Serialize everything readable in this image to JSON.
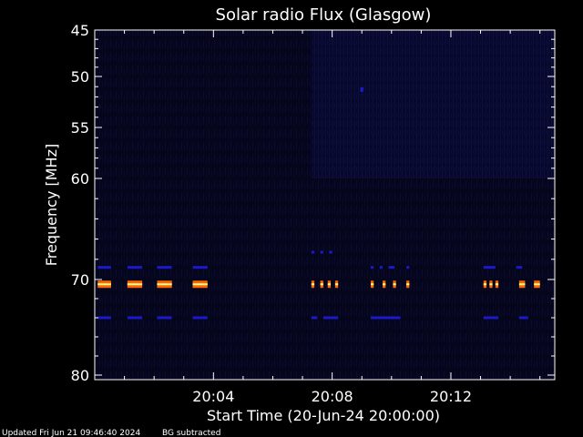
{
  "chart_data": {
    "type": "heatmap",
    "title": "Solar radio Flux (Glasgow)",
    "xlabel": "Start Time (20-Jun-24 20:00:00)",
    "ylabel": "Frequency [MHz]",
    "x_unit": "minutes after 20:00:00",
    "xlim": [
      0,
      15.5
    ],
    "ylim": [
      45,
      80
    ],
    "x_ticks": [
      {
        "value": 4,
        "label": "20:04"
      },
      {
        "value": 8,
        "label": "20:08"
      },
      {
        "value": 12,
        "label": "20:12"
      }
    ],
    "y_ticks": [
      {
        "value": 45,
        "label": "45"
      },
      {
        "value": 50,
        "label": "50"
      },
      {
        "value": 55,
        "label": "55"
      },
      {
        "value": 60,
        "label": "60"
      },
      {
        "value": 70,
        "label": "70"
      },
      {
        "value": 80,
        "label": "80"
      }
    ],
    "colors": {
      "background": "#000000",
      "plot_background": "#04041a",
      "low": "#0a0a2e",
      "medium": "#1a1acc",
      "high": "#ff6600",
      "peak": "#ffff99"
    },
    "features": [
      {
        "desc": "strong emission bursts",
        "freq": 70.5,
        "level": "high",
        "x_segments": [
          [
            0.1,
            0.55
          ],
          [
            1.1,
            1.6
          ],
          [
            2.1,
            2.6
          ],
          [
            3.3,
            3.8
          ],
          [
            7.3,
            7.4
          ],
          [
            7.6,
            7.7
          ],
          [
            7.85,
            7.95
          ],
          [
            8.1,
            8.2
          ],
          [
            9.3,
            9.4
          ],
          [
            9.7,
            9.8
          ],
          [
            10.05,
            10.15
          ],
          [
            10.5,
            10.6
          ],
          [
            13.1,
            13.2
          ],
          [
            13.3,
            13.4
          ],
          [
            13.5,
            13.6
          ],
          [
            14.3,
            14.5
          ],
          [
            14.8,
            15.0
          ]
        ]
      },
      {
        "desc": "moderate emission",
        "freq": 68.8,
        "level": "medium",
        "x_segments": [
          [
            0.1,
            0.55
          ],
          [
            1.1,
            1.6
          ],
          [
            2.1,
            2.6
          ],
          [
            3.3,
            3.8
          ],
          [
            9.3,
            9.4
          ],
          [
            9.6,
            9.7
          ],
          [
            9.9,
            10.1
          ],
          [
            10.5,
            10.6
          ],
          [
            13.1,
            13.5
          ],
          [
            14.2,
            14.4
          ]
        ]
      },
      {
        "desc": "moderate emission",
        "freq": 74.0,
        "level": "medium",
        "x_segments": [
          [
            0.1,
            0.55
          ],
          [
            1.1,
            1.6
          ],
          [
            2.1,
            2.6
          ],
          [
            3.3,
            3.8
          ],
          [
            7.3,
            7.5
          ],
          [
            7.7,
            8.2
          ],
          [
            9.3,
            10.3
          ],
          [
            13.1,
            13.6
          ],
          [
            14.3,
            14.6
          ]
        ]
      },
      {
        "desc": "weak emission",
        "freq": 67.3,
        "level": "medium",
        "x_segments": [
          [
            7.3,
            7.4
          ],
          [
            7.6,
            7.7
          ],
          [
            7.9,
            8.0
          ]
        ]
      },
      {
        "desc": "isolated point",
        "freq": 51.2,
        "level": "medium",
        "x_segments": [
          [
            8.95,
            9.05
          ]
        ]
      }
    ],
    "grid": false
  },
  "footer": {
    "updated": "Updated Fri Jun 21 09:46:40 2024",
    "note": "BG subtracted"
  }
}
